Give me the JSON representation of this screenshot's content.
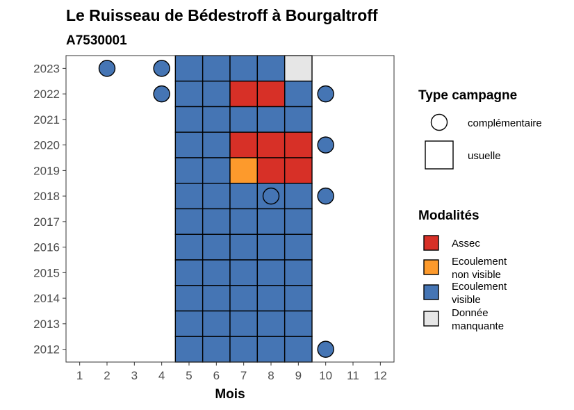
{
  "chart_data": {
    "type": "heatmap",
    "title": "Le Ruisseau de Bédestroff à Bourgaltroff",
    "subtitle": "A7530001",
    "xlabel": "Mois",
    "ylabel": "",
    "x_ticks": [
      "1",
      "2",
      "3",
      "4",
      "5",
      "6",
      "7",
      "8",
      "9",
      "10",
      "11",
      "12"
    ],
    "y_ticks": [
      "2012",
      "2013",
      "2014",
      "2015",
      "2016",
      "2017",
      "2018",
      "2019",
      "2020",
      "2021",
      "2022",
      "2023"
    ],
    "xlim": [
      0.5,
      12.5
    ],
    "ylim": [
      2011.5,
      2023.5
    ],
    "grid": false,
    "colors": {
      "Assec": "#d73027",
      "Ecoulement non visible": "#fd9a2c",
      "Ecoulement visible": "#4575b4",
      "Donnée manquante": "#e6e6e6"
    },
    "usuelle": [
      {
        "year": 2023,
        "months": [
          5,
          6,
          7,
          8
        ],
        "modalite": "Ecoulement visible"
      },
      {
        "year": 2023,
        "months": [
          9
        ],
        "modalite": "Donnée manquante"
      },
      {
        "year": 2022,
        "months": [
          5,
          6,
          9
        ],
        "modalite": "Ecoulement visible"
      },
      {
        "year": 2022,
        "months": [
          7,
          8
        ],
        "modalite": "Assec"
      },
      {
        "year": 2021,
        "months": [
          5,
          6,
          7,
          8,
          9
        ],
        "modalite": "Ecoulement visible"
      },
      {
        "year": 2020,
        "months": [
          5,
          6
        ],
        "modalite": "Ecoulement visible"
      },
      {
        "year": 2020,
        "months": [
          7,
          8,
          9
        ],
        "modalite": "Assec"
      },
      {
        "year": 2019,
        "months": [
          5,
          6
        ],
        "modalite": "Ecoulement visible"
      },
      {
        "year": 2019,
        "months": [
          7
        ],
        "modalite": "Ecoulement non visible"
      },
      {
        "year": 2019,
        "months": [
          8,
          9
        ],
        "modalite": "Assec"
      },
      {
        "year": 2018,
        "months": [
          5,
          6,
          7,
          8,
          9
        ],
        "modalite": "Ecoulement visible"
      },
      {
        "year": 2017,
        "months": [
          5,
          6,
          7,
          8,
          9
        ],
        "modalite": "Ecoulement visible"
      },
      {
        "year": 2016,
        "months": [
          5,
          6,
          7,
          8,
          9
        ],
        "modalite": "Ecoulement visible"
      },
      {
        "year": 2015,
        "months": [
          5,
          6,
          7,
          8,
          9
        ],
        "modalite": "Ecoulement visible"
      },
      {
        "year": 2014,
        "months": [
          5,
          6,
          7,
          8,
          9
        ],
        "modalite": "Ecoulement visible"
      },
      {
        "year": 2013,
        "months": [
          5,
          6,
          7,
          8,
          9
        ],
        "modalite": "Ecoulement visible"
      },
      {
        "year": 2012,
        "months": [
          5,
          6,
          7,
          8,
          9
        ],
        "modalite": "Ecoulement visible"
      }
    ],
    "complementaire": [
      {
        "year": 2023,
        "month": 2,
        "modalite": "Ecoulement visible"
      },
      {
        "year": 2023,
        "month": 4,
        "modalite": "Ecoulement visible"
      },
      {
        "year": 2022,
        "month": 4,
        "modalite": "Ecoulement visible"
      },
      {
        "year": 2022,
        "month": 10,
        "modalite": "Ecoulement visible"
      },
      {
        "year": 2020,
        "month": 10,
        "modalite": "Ecoulement visible"
      },
      {
        "year": 2018,
        "month": 8,
        "modalite": "Ecoulement visible"
      },
      {
        "year": 2018,
        "month": 10,
        "modalite": "Ecoulement visible"
      },
      {
        "year": 2012,
        "month": 10,
        "modalite": "Ecoulement visible"
      }
    ],
    "legend": {
      "placement": "right",
      "shape_title": "Type campagne",
      "shape_items": [
        "complémentaire",
        "usuelle"
      ],
      "fill_title": "Modalités",
      "fill_items": [
        {
          "key": "Assec",
          "lines": [
            "Assec"
          ]
        },
        {
          "key": "Ecoulement non visible",
          "lines": [
            "Ecoulement",
            "non visible"
          ]
        },
        {
          "key": "Ecoulement visible",
          "lines": [
            "Ecoulement",
            "visible"
          ]
        },
        {
          "key": "Donnée manquante",
          "lines": [
            "Donnée",
            "manquante"
          ]
        }
      ]
    }
  }
}
